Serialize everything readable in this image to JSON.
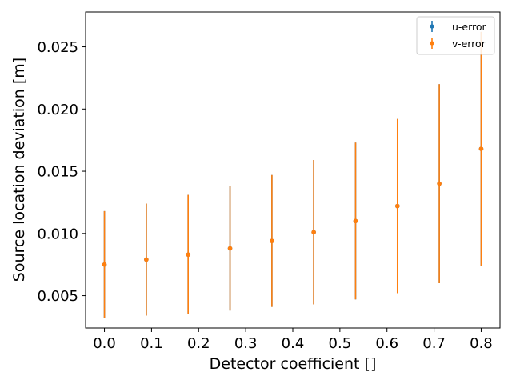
{
  "chart_data": {
    "type": "scatter",
    "xlabel": "Detector coefficient []",
    "ylabel": "Source location deviation [m]",
    "xlim": [
      -0.04,
      0.84
    ],
    "ylim": [
      0.0024,
      0.0278
    ],
    "x_ticks": [
      0.0,
      0.1,
      0.2,
      0.3,
      0.4,
      0.5,
      0.6,
      0.7,
      0.8
    ],
    "x_tick_labels": [
      "0.0",
      "0.1",
      "0.2",
      "0.3",
      "0.4",
      "0.5",
      "0.6",
      "0.7",
      "0.8"
    ],
    "y_ticks": [
      0.005,
      0.01,
      0.015,
      0.02,
      0.025
    ],
    "y_tick_labels": [
      "0.005",
      "0.010",
      "0.015",
      "0.020",
      "0.025"
    ],
    "grid": false,
    "legend_position": "top-right",
    "x": [
      0.0,
      0.0889,
      0.1778,
      0.2667,
      0.3556,
      0.4444,
      0.5333,
      0.6222,
      0.7111,
      0.8
    ],
    "series": [
      {
        "name": "u-error",
        "color": "#1f77b4",
        "values": [
          0.0075,
          0.0079,
          0.0083,
          0.0088,
          0.0094,
          0.0101,
          0.011,
          0.0122,
          0.014,
          0.0168
        ],
        "errors": [
          0.0043,
          0.0045,
          0.0048,
          0.005,
          0.0053,
          0.0058,
          0.0063,
          0.007,
          0.008,
          0.0094
        ]
      },
      {
        "name": "v-error",
        "color": "#ff7f0e",
        "values": [
          0.0075,
          0.0079,
          0.0083,
          0.0088,
          0.0094,
          0.0101,
          0.011,
          0.0122,
          0.014,
          0.0168
        ],
        "errors": [
          0.0043,
          0.0045,
          0.0048,
          0.005,
          0.0053,
          0.0058,
          0.0063,
          0.007,
          0.008,
          0.0094
        ]
      }
    ]
  }
}
